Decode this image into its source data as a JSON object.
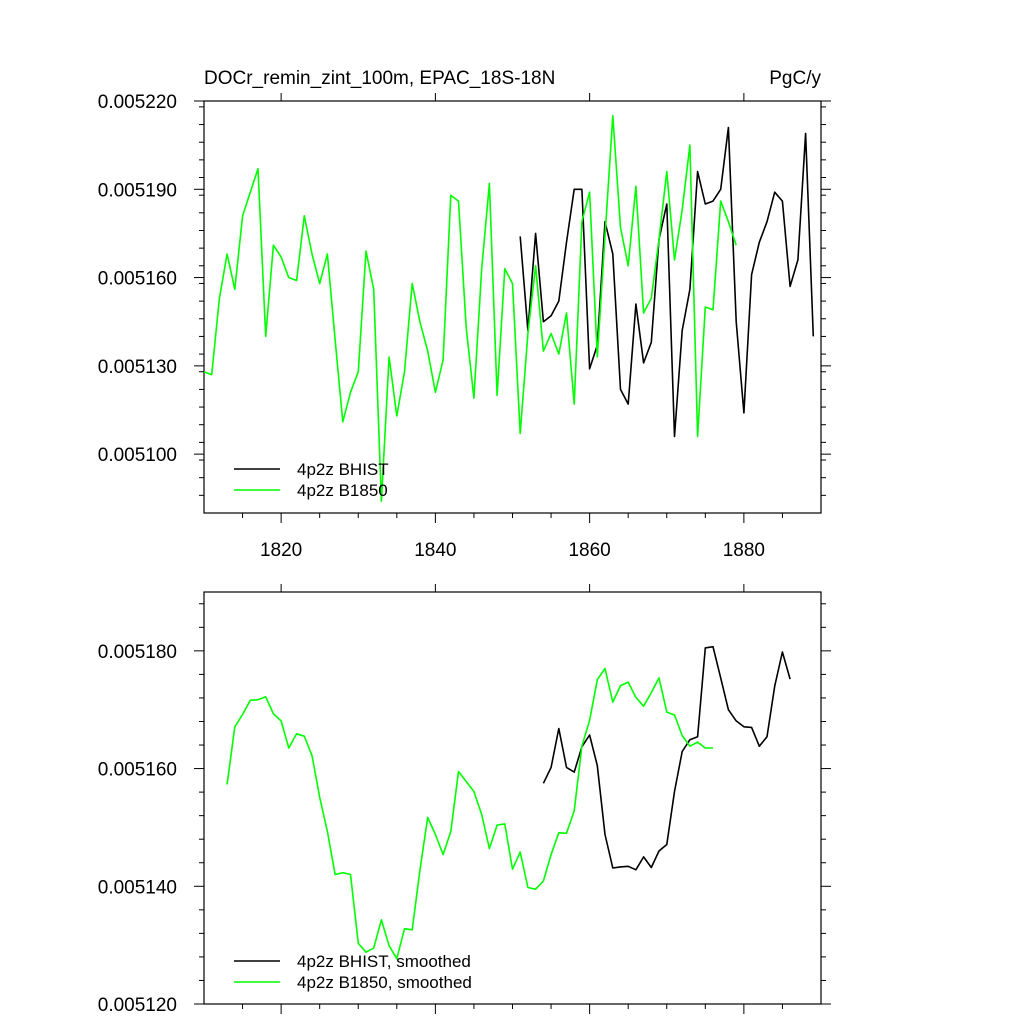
{
  "chart_data": [
    {
      "type": "line",
      "title": "DOCr_remin_zint_100m, EPAC_18S-18N",
      "units": "PgC/y",
      "xlim": [
        1810,
        1890
      ],
      "ylim": [
        0.00508,
        0.00522
      ],
      "xticks": [
        1820,
        1840,
        1860,
        1880
      ],
      "xtick_labels": [
        "1820",
        "1840",
        "1860",
        "1880"
      ],
      "yticks": [
        0.0051,
        0.00513,
        0.00516,
        0.00519,
        0.00522
      ],
      "ytick_labels": [
        "0.005100",
        "0.005130",
        "0.005160",
        "0.005190",
        "0.005220"
      ],
      "legend_position": "bottom-left",
      "series": [
        {
          "name": "4p2z BHIST",
          "color": "#000000",
          "x": [
            1851,
            1852,
            1853,
            1854,
            1855,
            1856,
            1857,
            1858,
            1859,
            1860,
            1861,
            1862,
            1863,
            1864,
            1865,
            1866,
            1867,
            1868,
            1869,
            1870,
            1871,
            1872,
            1873,
            1874,
            1875,
            1876,
            1877,
            1878,
            1879,
            1880,
            1881,
            1882,
            1883,
            1884,
            1885,
            1886,
            1887,
            1888,
            1889
          ],
          "y": [
            0.005174,
            0.005142,
            0.005175,
            0.005145,
            0.005147,
            0.005152,
            0.005172,
            0.00519,
            0.00519,
            0.005129,
            0.005137,
            0.005179,
            0.005168,
            0.005122,
            0.005117,
            0.005151,
            0.005131,
            0.005138,
            0.005173,
            0.005185,
            0.005106,
            0.005142,
            0.005156,
            0.005196,
            0.005185,
            0.005186,
            0.00519,
            0.005211,
            0.005145,
            0.005114,
            0.005161,
            0.005172,
            0.005179,
            0.005189,
            0.005186,
            0.005157,
            0.005166,
            0.005209,
            0.00514
          ]
        },
        {
          "name": "4p2z B1850",
          "color": "#00ff00",
          "x": [
            1810,
            1811,
            1812,
            1813,
            1814,
            1815,
            1816,
            1817,
            1818,
            1819,
            1820,
            1821,
            1822,
            1823,
            1824,
            1825,
            1826,
            1827,
            1828,
            1829,
            1830,
            1831,
            1832,
            1833,
            1834,
            1835,
            1836,
            1837,
            1838,
            1839,
            1840,
            1841,
            1842,
            1843,
            1844,
            1845,
            1846,
            1847,
            1848,
            1849,
            1850,
            1851,
            1852,
            1853,
            1854,
            1855,
            1856,
            1857,
            1858,
            1859,
            1860,
            1861,
            1862,
            1863,
            1864,
            1865,
            1866,
            1867,
            1868,
            1869,
            1870,
            1871,
            1872,
            1873,
            1874,
            1875,
            1876,
            1877,
            1878,
            1879
          ],
          "y": [
            0.005128,
            0.005127,
            0.005153,
            0.005168,
            0.005156,
            0.005181,
            0.005189,
            0.005197,
            0.00514,
            0.005171,
            0.005167,
            0.00516,
            0.005159,
            0.005181,
            0.005168,
            0.005158,
            0.005168,
            0.005139,
            0.005111,
            0.005121,
            0.005128,
            0.005169,
            0.005156,
            0.005084,
            0.005133,
            0.005113,
            0.005128,
            0.005158,
            0.005145,
            0.005135,
            0.005121,
            0.005132,
            0.005188,
            0.005186,
            0.005143,
            0.005119,
            0.005163,
            0.005192,
            0.00512,
            0.005163,
            0.005158,
            0.005107,
            0.005141,
            0.005164,
            0.005135,
            0.005141,
            0.005134,
            0.005148,
            0.005117,
            0.005179,
            0.005189,
            0.005133,
            0.005174,
            0.005215,
            0.005177,
            0.005164,
            0.005191,
            0.005148,
            0.005153,
            0.005173,
            0.005196,
            0.005166,
            0.005183,
            0.005205,
            0.005106,
            0.00515,
            0.005149,
            0.005186,
            0.005179,
            0.005171
          ]
        }
      ]
    },
    {
      "type": "line",
      "title": "",
      "xlim": [
        1810,
        1890
      ],
      "ylim": [
        0.00512,
        0.00519
      ],
      "xticks": [
        1820,
        1840,
        1860,
        1880
      ],
      "yticks": [
        0.00512,
        0.00514,
        0.00516,
        0.00518
      ],
      "ytick_labels": [
        "0.005120",
        "0.005140",
        "0.005160",
        "0.005180"
      ],
      "legend_position": "bottom-left",
      "series": [
        {
          "name": "4p2z BHIST, smoothed",
          "color": "#000000",
          "x": [
            1854,
            1855,
            1856,
            1857,
            1858,
            1859,
            1860,
            1861,
            1862,
            1863,
            1864,
            1865,
            1866,
            1867,
            1868,
            1869,
            1870,
            1871,
            1872,
            1873,
            1874,
            1875,
            1876,
            1877,
            1878,
            1879,
            1880,
            1881,
            1882,
            1883,
            1884,
            1885,
            1886
          ],
          "y": [
            0.0051575,
            0.0051602,
            0.0051668,
            0.0051602,
            0.0051594,
            0.0051637,
            0.0051657,
            0.0051605,
            0.0051488,
            0.0051431,
            0.0051433,
            0.0051434,
            0.0051428,
            0.005145,
            0.0051432,
            0.005146,
            0.0051471,
            0.0051561,
            0.0051629,
            0.0051649,
            0.0051654,
            0.0051805,
            0.0051807,
            0.0051754,
            0.00517,
            0.0051681,
            0.0051671,
            0.005167,
            0.0051638,
            0.0051654,
            0.005174,
            0.0051798,
            0.0051752
          ]
        },
        {
          "name": "4p2z B1850, smoothed",
          "color": "#00ff00",
          "x": [
            1813,
            1814,
            1815,
            1816,
            1817,
            1818,
            1819,
            1820,
            1821,
            1822,
            1823,
            1824,
            1825,
            1826,
            1827,
            1828,
            1829,
            1830,
            1831,
            1832,
            1833,
            1834,
            1835,
            1836,
            1837,
            1838,
            1839,
            1840,
            1841,
            1842,
            1843,
            1844,
            1845,
            1846,
            1847,
            1848,
            1849,
            1850,
            1851,
            1852,
            1853,
            1854,
            1855,
            1856,
            1857,
            1858,
            1859,
            1860,
            1861,
            1862,
            1863,
            1864,
            1865,
            1866,
            1867,
            1868,
            1869,
            1870,
            1871,
            1872,
            1873,
            1874,
            1875,
            1876
          ],
          "y": [
            0.0051573,
            0.0051671,
            0.0051692,
            0.0051716,
            0.0051717,
            0.0051722,
            0.0051693,
            0.0051681,
            0.0051635,
            0.0051659,
            0.0051655,
            0.0051622,
            0.0051551,
            0.0051493,
            0.005142,
            0.0051423,
            0.005142,
            0.0051303,
            0.0051288,
            0.0051295,
            0.0051343,
            0.0051299,
            0.0051277,
            0.0051328,
            0.0051326,
            0.0051427,
            0.0051517,
            0.0051488,
            0.0051454,
            0.0051493,
            0.0051595,
            0.0051578,
            0.0051561,
            0.0051522,
            0.0051464,
            0.0051504,
            0.0051506,
            0.0051429,
            0.0051458,
            0.0051398,
            0.0051395,
            0.0051409,
            0.0051454,
            0.0051491,
            0.005149,
            0.0051528,
            0.0051638,
            0.0051682,
            0.0051751,
            0.005177,
            0.0051713,
            0.0051741,
            0.0051747,
            0.0051721,
            0.0051706,
            0.0051729,
            0.0051754,
            0.0051696,
            0.0051691,
            0.0051656,
            0.0051638,
            0.0051645,
            0.0051635,
            0.0051635
          ]
        }
      ]
    }
  ]
}
